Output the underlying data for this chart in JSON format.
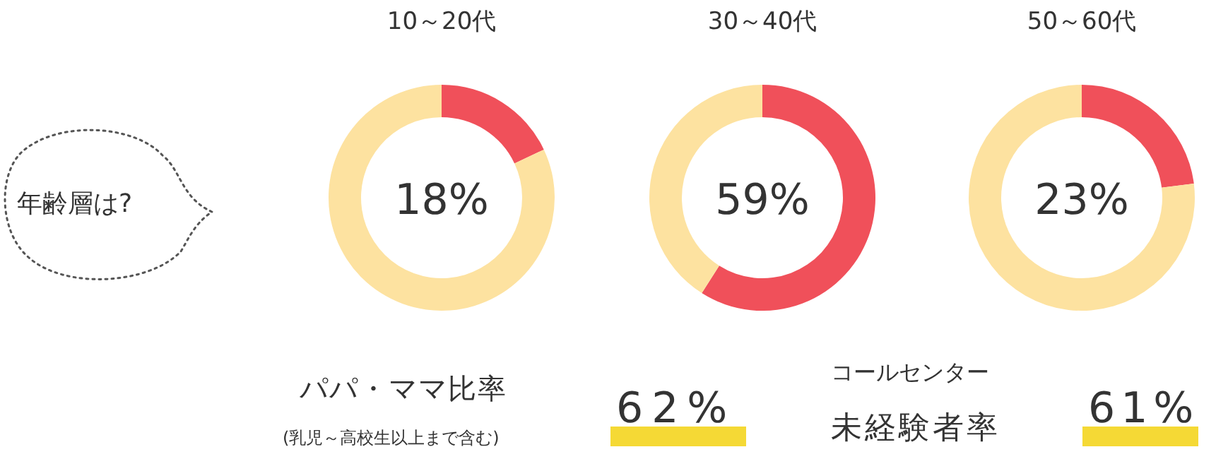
{
  "chart_data": [
    {
      "type": "other",
      "title": "年齢層は?"
    },
    {
      "type": "donut",
      "title": "10～20代",
      "categories": [
        null,
        null
      ],
      "values": [
        18,
        82
      ],
      "colors": [
        "#f0505a",
        "#fde2a0"
      ],
      "annotations": [
        "18%"
      ]
    },
    {
      "type": "donut",
      "title": "30～40代",
      "categories": [
        null,
        null
      ],
      "values": [
        59,
        41
      ],
      "colors": [
        "#f0505a",
        "#fde2a0"
      ],
      "annotations": [
        "59%"
      ]
    },
    {
      "type": "donut",
      "title": "50～60代",
      "categories": [
        null,
        null
      ],
      "values": [
        23,
        77
      ],
      "colors": [
        "#f0505a",
        "#fde2a0"
      ],
      "annotations": [
        "23%"
      ]
    },
    {
      "type": "other",
      "title": "パパ・ママ比率",
      "subtitle": "(乳児～高校生以上まで含む)",
      "annotations": [
        "62%"
      ]
    },
    {
      "type": "other",
      "title": "コールセンター",
      "subtitle": "未経験者率",
      "annotations": [
        "61%"
      ]
    }
  ]
}
